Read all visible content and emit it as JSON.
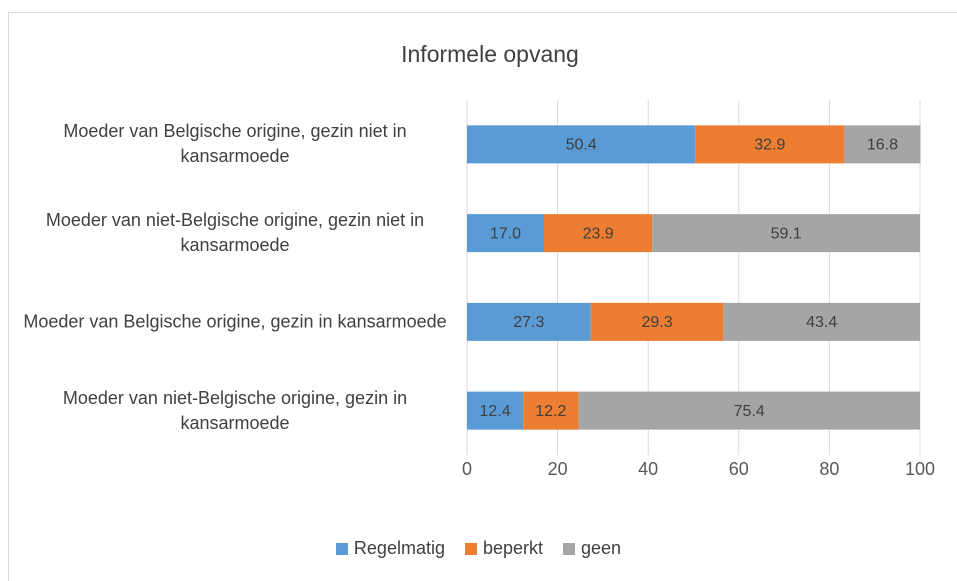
{
  "chart_data": {
    "type": "bar",
    "orientation": "horizontal",
    "stacked": true,
    "title": "Informele opvang",
    "categories": [
      "Moeder van Belgische origine, gezin niet in kansarmoede",
      "Moeder van niet-Belgische origine, gezin niet in kansarmoede",
      "Moeder van Belgische origine, gezin in kansarmoede",
      "Moeder van niet-Belgische origine, gezin in kansarmoede"
    ],
    "series": [
      {
        "name": "Regelmatig",
        "color": "#5b9bd5",
        "values": [
          50.4,
          17,
          27.3,
          12.4
        ],
        "value_labels": [
          "50.4",
          "17.0",
          "27.3",
          "12.4"
        ]
      },
      {
        "name": "beperkt",
        "color": "#ed7d31",
        "values": [
          32.9,
          23.9,
          29.3,
          12.2
        ],
        "value_labels": [
          "32.9",
          "23.9",
          "29.3",
          "12.2"
        ]
      },
      {
        "name": "geen",
        "color": "#a5a5a5",
        "values": [
          16.8,
          59.1,
          43.4,
          75.4
        ],
        "value_labels": [
          "16.8",
          "59.1",
          "43.4",
          "75.4"
        ]
      }
    ],
    "xlim": [
      0,
      100
    ],
    "xticks": [
      0,
      20,
      40,
      60,
      80,
      100
    ],
    "grid": true,
    "legend": "bottom"
  }
}
